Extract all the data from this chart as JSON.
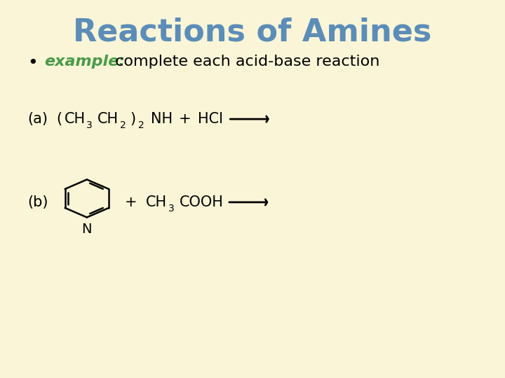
{
  "background_color": "#faf5d7",
  "title": "Reactions of Amines",
  "title_color": "#5b8db8",
  "title_fontsize": 32,
  "bullet_example_color": "#4a9a4a",
  "bullet_example_text": "example:",
  "bullet_rest_text": " complete each acid-base reaction",
  "bullet_fontsize": 16,
  "reaction_a_label": "(a)",
  "reaction_b_label": "(b)",
  "arrow_color": "#000000",
  "text_color": "#000000",
  "formula_fontsize": 15
}
